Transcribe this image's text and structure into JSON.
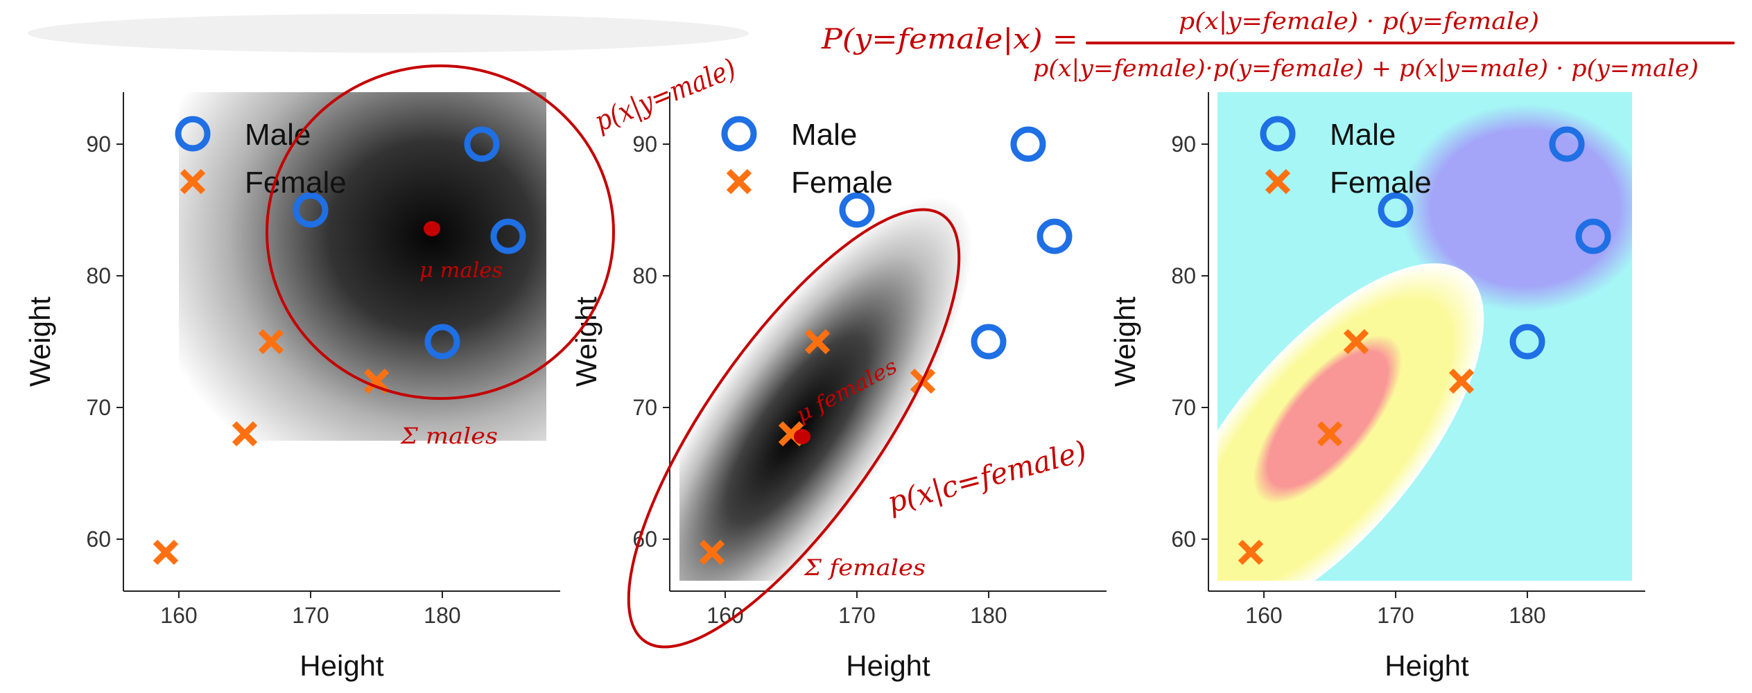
{
  "colors": {
    "male": "#1f6fe5",
    "female": "#ff7010",
    "annotation": "#c40000",
    "density_dark": "#000000",
    "region_background": "#a6f6f6",
    "region_male": "#a4a4f8",
    "region_female_outer": "#fbfa9b",
    "region_female_inner": "#f99797"
  },
  "chart_data": [
    {
      "type": "scatter",
      "panel": "male-density",
      "xlabel": "Height",
      "ylabel": "Weight",
      "xlim": [
        156,
        189
      ],
      "ylim": [
        56,
        94
      ],
      "xticks": [
        160,
        170,
        180
      ],
      "yticks": [
        60,
        70,
        80,
        90
      ],
      "legend": [
        "Male",
        "Female"
      ],
      "legend_position": "top-left",
      "background": "gaussian density of Male class (grayscale)",
      "series": [
        {
          "name": "Male",
          "marker": "circle",
          "x": [
            170,
            183,
            185,
            180
          ],
          "y": [
            85,
            90,
            83,
            75
          ]
        },
        {
          "name": "Female",
          "marker": "cross",
          "x": [
            159,
            165,
            167,
            175
          ],
          "y": [
            59,
            68,
            75,
            72
          ]
        }
      ]
    },
    {
      "type": "scatter",
      "panel": "female-density",
      "xlabel": "Height",
      "ylabel": "Weight",
      "xlim": [
        156,
        189
      ],
      "ylim": [
        56,
        94
      ],
      "xticks": [
        160,
        170,
        180
      ],
      "yticks": [
        60,
        70,
        80,
        90
      ],
      "legend": [
        "Male",
        "Female"
      ],
      "legend_position": "top-left",
      "background": "gaussian density of Female class (grayscale)",
      "series": [
        {
          "name": "Male",
          "marker": "circle",
          "x": [
            170,
            183,
            185,
            180
          ],
          "y": [
            85,
            90,
            83,
            75
          ]
        },
        {
          "name": "Female",
          "marker": "cross",
          "x": [
            159,
            165,
            167,
            175
          ],
          "y": [
            59,
            68,
            75,
            72
          ]
        }
      ]
    },
    {
      "type": "scatter",
      "panel": "classification-regions",
      "xlabel": "Height",
      "ylabel": "Weight",
      "xlim": [
        156,
        189
      ],
      "ylim": [
        56,
        94
      ],
      "xticks": [
        160,
        170,
        180
      ],
      "yticks": [
        60,
        70,
        80,
        90
      ],
      "legend": [
        "Male",
        "Female"
      ],
      "legend_position": "top-left",
      "background": "classification probability regions (cyan, blue, yellow, red)",
      "series": [
        {
          "name": "Male",
          "marker": "circle",
          "x": [
            170,
            183,
            185,
            180
          ],
          "y": [
            85,
            90,
            83,
            75
          ]
        },
        {
          "name": "Female",
          "marker": "cross",
          "x": [
            159,
            165,
            167,
            175
          ],
          "y": [
            59,
            68,
            75,
            72
          ]
        }
      ]
    }
  ],
  "annotations": {
    "bayes_lhs": "P(y=female|x) =",
    "bayes_numerator": "p(x|y=female) · p(y=female)",
    "bayes_denominator": "p(x|y=female)·p(y=female) + p(x|y=male) · p(y=male)",
    "male_likelihood": "p(x|y=male)",
    "male_mean": "μ males",
    "male_cov": "Σ males",
    "female_mean": "μ females",
    "female_likelihood": "p(x|c=female)",
    "female_cov": "Σ females"
  }
}
